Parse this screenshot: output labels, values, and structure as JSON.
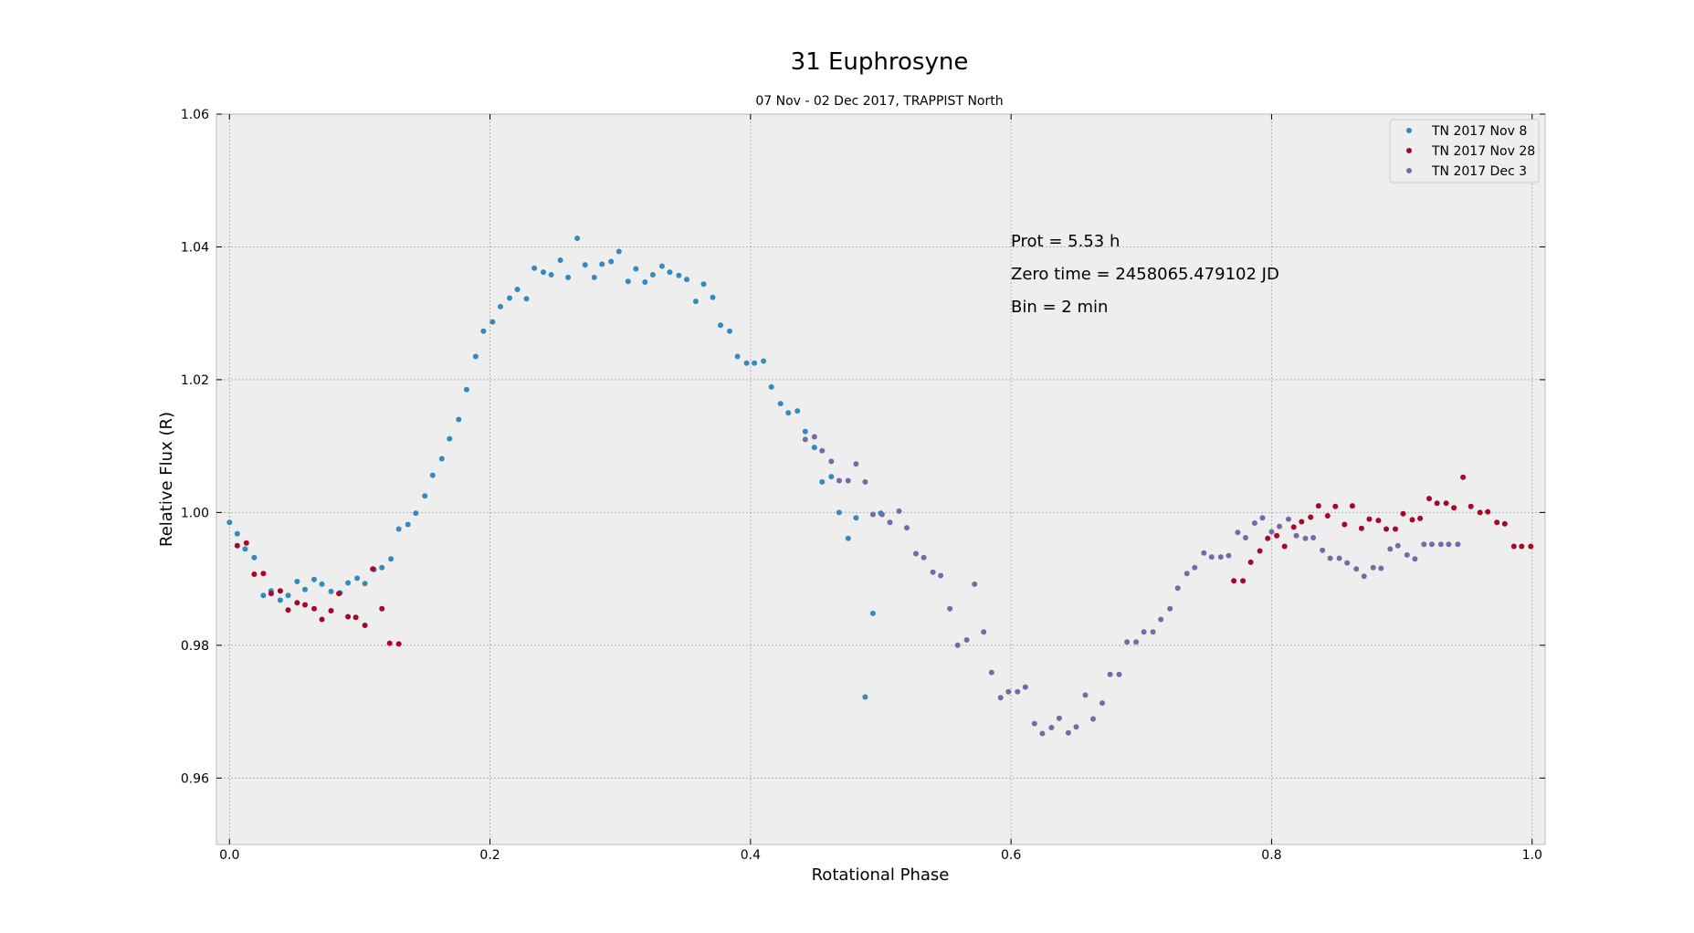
{
  "chart_data": {
    "type": "scatter",
    "title": "31 Euphrosyne",
    "subtitle": "07 Nov - 02 Dec 2017, TRAPPIST North",
    "xlabel": "Rotational Phase",
    "ylabel": "Relative Flux (R)",
    "xlim": [
      -0.01,
      1.01
    ],
    "ylim": [
      0.95,
      1.06
    ],
    "xticks": [
      0.0,
      0.2,
      0.4,
      0.6,
      0.8,
      1.0
    ],
    "xtick_labels": [
      "0.0",
      "0.2",
      "0.4",
      "0.6",
      "0.8",
      "1.0"
    ],
    "yticks": [
      0.96,
      0.98,
      1.0,
      1.02,
      1.04,
      1.06
    ],
    "ytick_labels": [
      "0.96",
      "0.98",
      "1.00",
      "1.02",
      "1.04",
      "1.06"
    ],
    "grid": true,
    "legend_position": "top-right",
    "annotations": [
      "Prot = 5.53 h",
      "Zero time = 2458065.479102 JD",
      "Bin = 2 min"
    ],
    "series": [
      {
        "name": "TN 2017 Nov 8",
        "color": "#348ABD",
        "x": [
          0.0,
          0.006,
          0.012,
          0.019,
          0.026,
          0.032,
          0.039,
          0.045,
          0.052,
          0.058,
          0.065,
          0.071,
          0.078,
          0.085,
          0.091,
          0.098,
          0.104,
          0.111,
          0.117,
          0.124,
          0.13,
          0.137,
          0.143,
          0.15,
          0.156,
          0.163,
          0.169,
          0.176,
          0.182,
          0.189,
          0.195,
          0.202,
          0.208,
          0.215,
          0.221,
          0.228,
          0.234,
          0.241,
          0.247,
          0.254,
          0.26,
          0.267,
          0.273,
          0.28,
          0.286,
          0.293,
          0.299,
          0.306,
          0.312,
          0.319,
          0.325,
          0.332,
          0.338,
          0.345,
          0.351,
          0.358,
          0.364,
          0.371,
          0.377,
          0.384,
          0.39,
          0.397,
          0.403,
          0.41,
          0.416,
          0.423,
          0.429,
          0.436,
          0.442,
          0.449,
          0.455,
          0.462,
          0.468,
          0.475,
          0.481,
          0.488,
          0.494,
          0.5
        ],
        "y": [
          0.9985,
          0.9968,
          0.9945,
          0.9932,
          0.9875,
          0.9882,
          0.9868,
          0.9875,
          0.9896,
          0.9884,
          0.9899,
          0.9892,
          0.9881,
          0.9879,
          0.9894,
          0.9901,
          0.9893,
          0.9914,
          0.9917,
          0.993,
          0.9975,
          0.9982,
          0.9999,
          1.0025,
          1.0056,
          1.0081,
          1.0111,
          1.014,
          1.0185,
          1.0235,
          1.0273,
          1.0287,
          1.031,
          1.0323,
          1.0336,
          1.0322,
          1.0368,
          1.0362,
          1.0358,
          1.038,
          1.0354,
          1.0413,
          1.0373,
          1.0354,
          1.0374,
          1.0378,
          1.0393,
          1.0348,
          1.0367,
          1.0347,
          1.0358,
          1.0371,
          1.0362,
          1.0357,
          1.0351,
          1.0318,
          1.0344,
          1.0324,
          1.0282,
          1.0273,
          1.0235,
          1.0225,
          1.0225,
          1.0228,
          1.0189,
          1.0164,
          1.015,
          1.0153,
          1.0122,
          1.0098,
          1.0046,
          1.0054,
          1.0,
          0.9961,
          0.9992,
          0.9722,
          0.9848,
          0.9999
        ]
      },
      {
        "name": "TN 2017 Nov 28",
        "color": "#A60628",
        "x": [
          0.006,
          0.013,
          0.019,
          0.026,
          0.032,
          0.039,
          0.045,
          0.052,
          0.058,
          0.065,
          0.071,
          0.078,
          0.084,
          0.091,
          0.097,
          0.104,
          0.11,
          0.117,
          0.123,
          0.13,
          0.771,
          0.778,
          0.784,
          0.791,
          0.797,
          0.804,
          0.81,
          0.817,
          0.823,
          0.83,
          0.836,
          0.843,
          0.849,
          0.856,
          0.862,
          0.869,
          0.875,
          0.882,
          0.888,
          0.895,
          0.901,
          0.908,
          0.914,
          0.921,
          0.927,
          0.934,
          0.94,
          0.947,
          0.953,
          0.96,
          0.966,
          0.973,
          0.979,
          0.986,
          0.992,
          0.999
        ],
        "y": [
          0.995,
          0.9954,
          0.9907,
          0.9908,
          0.9878,
          0.9882,
          0.9853,
          0.9864,
          0.9861,
          0.9855,
          0.9839,
          0.9852,
          0.9878,
          0.9843,
          0.9842,
          0.983,
          0.9915,
          0.9855,
          0.9803,
          0.9802,
          0.9897,
          0.9897,
          0.9925,
          0.9942,
          0.9961,
          0.9965,
          0.9949,
          0.9978,
          0.9986,
          0.9993,
          1.001,
          0.9995,
          1.0009,
          0.9982,
          1.001,
          0.9976,
          0.999,
          0.9988,
          0.9975,
          0.9975,
          0.9998,
          0.9989,
          0.9991,
          1.0021,
          1.0014,
          1.0014,
          1.0007,
          1.0053,
          1.0009,
          1.0,
          1.0001,
          0.9985,
          0.9983,
          0.9949,
          0.9949,
          0.9949
        ]
      },
      {
        "name": "TN 2017 Dec 3",
        "color": "#7A68A6",
        "x": [
          0.442,
          0.449,
          0.455,
          0.462,
          0.468,
          0.475,
          0.481,
          0.488,
          0.494,
          0.501,
          0.507,
          0.514,
          0.52,
          0.527,
          0.533,
          0.54,
          0.546,
          0.553,
          0.559,
          0.566,
          0.572,
          0.579,
          0.585,
          0.592,
          0.598,
          0.605,
          0.611,
          0.618,
          0.624,
          0.631,
          0.637,
          0.644,
          0.65,
          0.657,
          0.663,
          0.67,
          0.676,
          0.683,
          0.689,
          0.696,
          0.702,
          0.709,
          0.715,
          0.722,
          0.728,
          0.735,
          0.741,
          0.748,
          0.754,
          0.761,
          0.767,
          0.774,
          0.78,
          0.787,
          0.793,
          0.8,
          0.806,
          0.813,
          0.819,
          0.826,
          0.832,
          0.839,
          0.845,
          0.852,
          0.858,
          0.865,
          0.871,
          0.878,
          0.884,
          0.891,
          0.897,
          0.904,
          0.91,
          0.917,
          0.923,
          0.93,
          0.936,
          0.943
        ],
        "y": [
          1.011,
          1.0114,
          1.0093,
          1.0077,
          1.0048,
          1.0048,
          1.0073,
          1.0046,
          0.9997,
          0.9997,
          0.9985,
          1.0002,
          0.9977,
          0.9938,
          0.9932,
          0.991,
          0.9905,
          0.9855,
          0.98,
          0.9808,
          0.9892,
          0.982,
          0.9759,
          0.9721,
          0.973,
          0.973,
          0.9737,
          0.9682,
          0.9667,
          0.9676,
          0.969,
          0.9668,
          0.9677,
          0.9725,
          0.9689,
          0.9713,
          0.9756,
          0.9756,
          0.9805,
          0.9805,
          0.982,
          0.982,
          0.9839,
          0.9855,
          0.9886,
          0.9908,
          0.9917,
          0.9939,
          0.9933,
          0.9933,
          0.9935,
          0.997,
          0.9962,
          0.9984,
          0.9992,
          0.9971,
          0.9979,
          0.999,
          0.9965,
          0.9961,
          0.9962,
          0.9943,
          0.9931,
          0.9931,
          0.9924,
          0.9915,
          0.9904,
          0.9917,
          0.9916,
          0.9945,
          0.995,
          0.9936,
          0.993,
          0.9952,
          0.9952,
          0.9952,
          0.9952,
          0.9952
        ]
      }
    ]
  }
}
